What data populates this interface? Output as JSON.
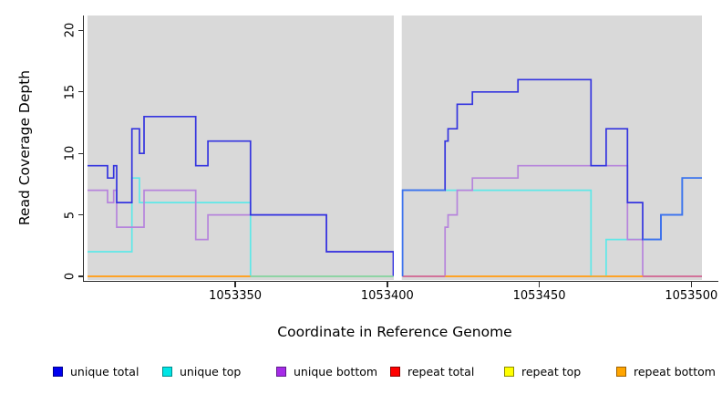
{
  "figure": {
    "x_axis_title": "Coordinate in Reference Genome",
    "y_axis_title": "Read Coverage Depth"
  },
  "axes": {
    "x_ticks": [
      "1053350",
      "1053400",
      "1053450",
      "1053500"
    ],
    "x_tick_values": [
      1053350,
      1053400,
      1053450,
      1053500
    ],
    "y_ticks": [
      "0",
      "5",
      "10",
      "15",
      "20"
    ],
    "y_tick_values": [
      0,
      5,
      10,
      15,
      20
    ]
  },
  "legend": {
    "items": [
      {
        "key": "unique-total",
        "label": "unique total",
        "fill": "#0000F0",
        "border": "#00008B"
      },
      {
        "key": "unique-top",
        "label": "unique top",
        "fill": "#00E5E5",
        "border": "#008B8B"
      },
      {
        "key": "unique-bottom",
        "label": "unique bottom",
        "fill": "#A62BE8",
        "border": "#5E1C8A"
      },
      {
        "key": "repeat-total",
        "label": "repeat total",
        "fill": "#FF0000",
        "border": "#8B0000"
      },
      {
        "key": "repeat-top",
        "label": "repeat top",
        "fill": "#FFFF00",
        "border": "#8B8B00"
      },
      {
        "key": "repeat-bottom",
        "label": "repeat bottom",
        "fill": "#FFA500",
        "border": "#9C5F00"
      }
    ]
  },
  "chart_data": {
    "type": "line",
    "style": "step",
    "title": "",
    "xlabel": "Coordinate in Reference Genome",
    "ylabel": "Read Coverage Depth",
    "xlim": [
      1053301.4,
      1053503.5
    ],
    "ylim": [
      0,
      20
    ],
    "grid": false,
    "legend_position": "bottom",
    "panel_background": "#D9D9D9",
    "gap": {
      "x1": 1053402.15,
      "x2": 1053404.75
    },
    "series": [
      {
        "name": "repeat total",
        "key": "repeat-total",
        "color": "#CC1414",
        "left": {
          "pts": [
            [
              1053301.4,
              0
            ]
          ],
          "end": 1053402
        },
        "right": {
          "pts": [
            [
              1053405,
              0
            ]
          ],
          "end": 1053503.5
        }
      },
      {
        "name": "repeat top",
        "key": "repeat-top",
        "color": "#E8E832",
        "left": {
          "pts": [
            [
              1053301.4,
              0
            ]
          ],
          "end": 1053402
        },
        "right": {
          "pts": [
            [
              1053405,
              0
            ]
          ],
          "end": 1053503.5
        }
      },
      {
        "name": "repeat bottom",
        "key": "repeat-bottom",
        "color": "#FFA126",
        "left": {
          "pts": [
            [
              1053301.4,
              0
            ]
          ],
          "end": 1053402
        },
        "right": {
          "pts": [
            [
              1053405,
              0
            ]
          ],
          "end": 1053503.5
        }
      },
      {
        "name": "unique top",
        "key": "unique-top",
        "color": "#5FE8E8",
        "left": {
          "pts": [
            [
              1053301.4,
              2
            ],
            [
              1053316,
              8
            ],
            [
              1053318.5,
              6
            ],
            [
              1053355,
              0
            ]
          ],
          "end": 1053402
        },
        "right": {
          "pts": [
            [
              1053405,
              0
            ],
            [
              1053405,
              7
            ],
            [
              1053467,
              0
            ],
            [
              1053472,
              3
            ],
            [
              1053490,
              5
            ],
            [
              1053497,
              8
            ]
          ],
          "end": 1053503.5
        }
      },
      {
        "name": "unique bottom",
        "key": "unique-bottom",
        "color": "#B684DC",
        "left": {
          "pts": [
            [
              1053301.4,
              7
            ],
            [
              1053308,
              6
            ],
            [
              1053310,
              7
            ],
            [
              1053311,
              4
            ],
            [
              1053320,
              7
            ],
            [
              1053337,
              3
            ],
            [
              1053341,
              5
            ],
            [
              1053380,
              2
            ],
            [
              1053402,
              0
            ]
          ],
          "end": 1053402
        },
        "right": {
          "pts": [
            [
              1053405,
              0
            ],
            [
              1053419,
              4
            ],
            [
              1053420,
              5
            ],
            [
              1053423,
              7
            ],
            [
              1053428,
              8
            ],
            [
              1053443,
              9
            ],
            [
              1053479,
              3
            ],
            [
              1053484,
              0
            ]
          ],
          "end": 1053503.5
        }
      },
      {
        "name": "unique total",
        "key": "unique-total",
        "color": "#3434DF",
        "left": {
          "pts": [
            [
              1053301.4,
              9
            ],
            [
              1053308,
              8
            ],
            [
              1053310,
              9
            ],
            [
              1053311,
              6
            ],
            [
              1053316,
              12
            ],
            [
              1053318.5,
              10
            ],
            [
              1053320,
              13
            ],
            [
              1053337,
              9
            ],
            [
              1053341,
              11
            ],
            [
              1053355,
              5
            ],
            [
              1053380,
              2
            ],
            [
              1053402,
              0
            ]
          ],
          "end": 1053402
        },
        "right": {
          "pts": [
            [
              1053405,
              0
            ],
            [
              1053405,
              7
            ],
            [
              1053419,
              11
            ],
            [
              1053420,
              12
            ],
            [
              1053423,
              14
            ],
            [
              1053428,
              15
            ],
            [
              1053443,
              16
            ],
            [
              1053467,
              9
            ],
            [
              1053472,
              12
            ],
            [
              1053479,
              6
            ],
            [
              1053484,
              3
            ],
            [
              1053490,
              5
            ],
            [
              1053497,
              8
            ]
          ],
          "end": 1053503.5
        }
      }
    ],
    "highlight_segments": [
      {
        "name": "unique total over unique top",
        "color": "#3C74EE",
        "pts": [
          [
            1053405,
            0
          ],
          [
            1053405,
            7
          ]
        ],
        "end": 1053419
      },
      {
        "name": "unique total over unique top",
        "color": "#3C74EE",
        "pts": [
          [
            1053484,
            3
          ],
          [
            1053490,
            5
          ],
          [
            1053497,
            8
          ]
        ],
        "end": 1053503.5
      }
    ],
    "baseline_segments": [
      {
        "x1": 1053301.4,
        "x2": 1053355,
        "color": "#FFA126"
      },
      {
        "x1": 1053355,
        "x2": 1053402,
        "color": "#8FD3A2"
      },
      {
        "x1": 1053405,
        "x2": 1053419,
        "color": "#D46F97"
      },
      {
        "x1": 1053419,
        "x2": 1053484,
        "color": "#FFA126"
      },
      {
        "x1": 1053484,
        "x2": 1053503.5,
        "color": "#D46F97"
      }
    ]
  }
}
